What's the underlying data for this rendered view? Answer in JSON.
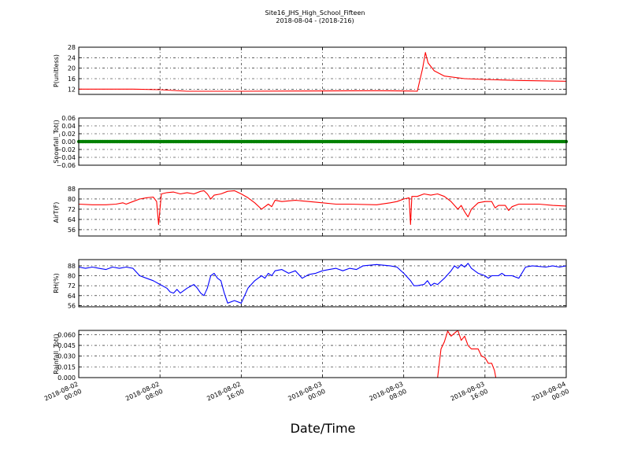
{
  "figure": {
    "title": "Site16_JHS_High_School_Fifteen",
    "subtitle": "2018-08-04 - (2018-216)",
    "xlabel": "Date/Time"
  },
  "chart_data": [
    {
      "type": "line",
      "ylabel": "P(unitless)",
      "ylim": [
        10,
        28
      ],
      "yticks": [
        "28",
        "24",
        "20",
        "16",
        "12"
      ],
      "grid": true,
      "series": [
        {
          "color": "#ff0000",
          "values": [
            [
              0,
              12
            ],
            [
              8,
              12
            ],
            [
              12,
              11.8
            ],
            [
              16,
              11.2
            ],
            [
              24,
              11.2
            ],
            [
              32,
              11.3
            ],
            [
              44,
              11.4
            ],
            [
              49,
              11.3
            ],
            [
              50,
              11.2
            ],
            [
              50.8,
              20
            ],
            [
              51.2,
              26
            ],
            [
              51.6,
              22
            ],
            [
              52.5,
              19
            ],
            [
              54,
              17
            ],
            [
              57,
              16
            ],
            [
              60,
              15.7
            ],
            [
              65,
              15.3
            ],
            [
              72,
              15
            ]
          ]
        }
      ]
    },
    {
      "type": "scatter",
      "ylabel": "Snowfall_Tot()",
      "ylim": [
        -0.06,
        0.06
      ],
      "yticks": [
        "0.06",
        "0.04",
        "0.02",
        "0.00",
        "−0.02",
        "−0.04",
        "−0.06"
      ],
      "grid": true,
      "series": [
        {
          "color": "#008000",
          "constant": 0
        }
      ]
    },
    {
      "type": "line",
      "ylabel": "AirT(F)",
      "ylim": [
        51,
        88
      ],
      "yticks": [
        "88",
        "80",
        "72",
        "64",
        "56"
      ],
      "grid": true,
      "series": [
        {
          "color": "#ff0000",
          "values": [
            [
              0,
              76
            ],
            [
              2,
              75.5
            ],
            [
              4,
              75.5
            ],
            [
              5.5,
              76
            ],
            [
              6.5,
              77
            ],
            [
              7,
              76
            ],
            [
              8,
              78
            ],
            [
              9,
              80
            ],
            [
              10,
              81
            ],
            [
              11,
              81.5
            ],
            [
              11.5,
              78
            ],
            [
              11.8,
              60
            ],
            [
              12.2,
              84
            ],
            [
              13,
              85
            ],
            [
              14,
              85.5
            ],
            [
              15,
              84
            ],
            [
              16,
              85
            ],
            [
              17,
              84
            ],
            [
              18,
              86
            ],
            [
              18.5,
              86.5
            ],
            [
              19,
              84
            ],
            [
              19.5,
              80
            ],
            [
              20,
              83
            ],
            [
              21,
              84
            ],
            [
              22,
              86
            ],
            [
              23,
              86.5
            ],
            [
              24,
              84
            ],
            [
              25,
              81
            ],
            [
              26,
              77
            ],
            [
              27,
              72
            ],
            [
              28,
              76
            ],
            [
              28.5,
              74
            ],
            [
              29,
              79
            ],
            [
              30,
              78
            ],
            [
              32,
              79
            ],
            [
              34,
              78
            ],
            [
              36,
              77
            ],
            [
              38,
              76
            ],
            [
              40,
              76
            ],
            [
              44,
              75.5
            ],
            [
              46,
              77
            ],
            [
              47,
              78
            ],
            [
              48,
              80
            ],
            [
              48.8,
              81
            ],
            [
              49,
              60
            ],
            [
              49.2,
              82
            ],
            [
              50,
              82
            ],
            [
              51,
              84
            ],
            [
              52,
              83
            ],
            [
              53,
              84
            ],
            [
              54,
              82
            ],
            [
              55,
              78
            ],
            [
              56,
              72
            ],
            [
              56.5,
              75
            ],
            [
              57,
              70
            ],
            [
              57.5,
              66
            ],
            [
              58,
              72
            ],
            [
              59,
              77
            ],
            [
              60,
              78
            ],
            [
              61,
              78
            ],
            [
              61.5,
              73
            ],
            [
              62,
              75
            ],
            [
              63,
              75
            ],
            [
              63.5,
              71
            ],
            [
              64,
              74
            ],
            [
              65,
              76
            ],
            [
              68,
              76
            ],
            [
              70,
              75
            ],
            [
              72,
              74.5
            ]
          ]
        }
      ]
    },
    {
      "type": "line",
      "ylabel": "RH(%)",
      "ylim": [
        55,
        93
      ],
      "yticks": [
        "88",
        "80",
        "72",
        "64",
        "56"
      ],
      "grid": true,
      "series": [
        {
          "color": "#0000ff",
          "values": [
            [
              0,
              87
            ],
            [
              1,
              86
            ],
            [
              2,
              87
            ],
            [
              3,
              86
            ],
            [
              4,
              85
            ],
            [
              5,
              87
            ],
            [
              6,
              86
            ],
            [
              7,
              87
            ],
            [
              8,
              86
            ],
            [
              9,
              80
            ],
            [
              10,
              78
            ],
            [
              11,
              76
            ],
            [
              12,
              73
            ],
            [
              13,
              70
            ],
            [
              13.5,
              67
            ],
            [
              14,
              66
            ],
            [
              14.5,
              69
            ],
            [
              15,
              66
            ],
            [
              16,
              70
            ],
            [
              17,
              73
            ],
            [
              17.5,
              70
            ],
            [
              18,
              66
            ],
            [
              18.5,
              64
            ],
            [
              19,
              70
            ],
            [
              19.5,
              80
            ],
            [
              20,
              82
            ],
            [
              20.5,
              78
            ],
            [
              21,
              76
            ],
            [
              21.5,
              66
            ],
            [
              22,
              58
            ],
            [
              23,
              60
            ],
            [
              24,
              58
            ],
            [
              25,
              70
            ],
            [
              26,
              76
            ],
            [
              27,
              80
            ],
            [
              27.5,
              78
            ],
            [
              28,
              82
            ],
            [
              28.5,
              80
            ],
            [
              29,
              84
            ],
            [
              30,
              85
            ],
            [
              31,
              82
            ],
            [
              32,
              84
            ],
            [
              33,
              78
            ],
            [
              34,
              81
            ],
            [
              35,
              82
            ],
            [
              36,
              84
            ],
            [
              37,
              85
            ],
            [
              38,
              86
            ],
            [
              39,
              84
            ],
            [
              40,
              86
            ],
            [
              41,
              85
            ],
            [
              42,
              88
            ],
            [
              44,
              89
            ],
            [
              46,
              88
            ],
            [
              47,
              87
            ],
            [
              48,
              82
            ],
            [
              49,
              76
            ],
            [
              49.5,
              72
            ],
            [
              50,
              72
            ],
            [
              51,
              73
            ],
            [
              51.5,
              76
            ],
            [
              52,
              72
            ],
            [
              52.5,
              74
            ],
            [
              53,
              73
            ],
            [
              54,
              78
            ],
            [
              55,
              84
            ],
            [
              55.5,
              88
            ],
            [
              56,
              86
            ],
            [
              56.5,
              89
            ],
            [
              57,
              87
            ],
            [
              57.5,
              90
            ],
            [
              58,
              86
            ],
            [
              59,
              82
            ],
            [
              60,
              80
            ],
            [
              60.5,
              78
            ],
            [
              61,
              80
            ],
            [
              62,
              80
            ],
            [
              62.5,
              82
            ],
            [
              63,
              80
            ],
            [
              64,
              80
            ],
            [
              65,
              78
            ],
            [
              66,
              87
            ],
            [
              67,
              88
            ],
            [
              69,
              87
            ],
            [
              70,
              88
            ],
            [
              71,
              87
            ],
            [
              72,
              88
            ]
          ]
        }
      ]
    },
    {
      "type": "line",
      "ylabel": "Rainfall_Tot()",
      "ylim": [
        0,
        0.066
      ],
      "yticks": [
        "0.060",
        "0.045",
        "0.030",
        "0.015",
        "0.000"
      ],
      "grid": true,
      "series": [
        {
          "color": "#ff0000",
          "values": [
            [
              0,
              0
            ],
            [
              53,
              0
            ],
            [
              53.5,
              0.04
            ],
            [
              54,
              0.05
            ],
            [
              54.5,
              0.065
            ],
            [
              55,
              0.058
            ],
            [
              55.5,
              0.062
            ],
            [
              56,
              0.066
            ],
            [
              56.5,
              0.052
            ],
            [
              57,
              0.058
            ],
            [
              57.5,
              0.045
            ],
            [
              58,
              0.04
            ],
            [
              58.5,
              0.04
            ],
            [
              59,
              0.04
            ],
            [
              59.5,
              0.03
            ],
            [
              60,
              0.028
            ],
            [
              60.5,
              0.02
            ],
            [
              61,
              0.02
            ],
            [
              61.4,
              0.01
            ],
            [
              61.6,
              0.0
            ],
            [
              72,
              0
            ]
          ]
        }
      ]
    }
  ],
  "x_axis": {
    "range": [
      0,
      72
    ],
    "tick_values": [
      0,
      12,
      24,
      36,
      48,
      60,
      72
    ],
    "tick_labels": [
      [
        "2018-08-02",
        "00:00"
      ],
      [
        "2018-08-02",
        "08:00"
      ],
      [
        "2018-08-02",
        "16:00"
      ],
      [
        "2018-08-03",
        "00:00"
      ],
      [
        "2018-08-03",
        "08:00"
      ],
      [
        "2018-08-03",
        "16:00"
      ],
      [
        "2018-08-04",
        "00:00"
      ]
    ]
  }
}
